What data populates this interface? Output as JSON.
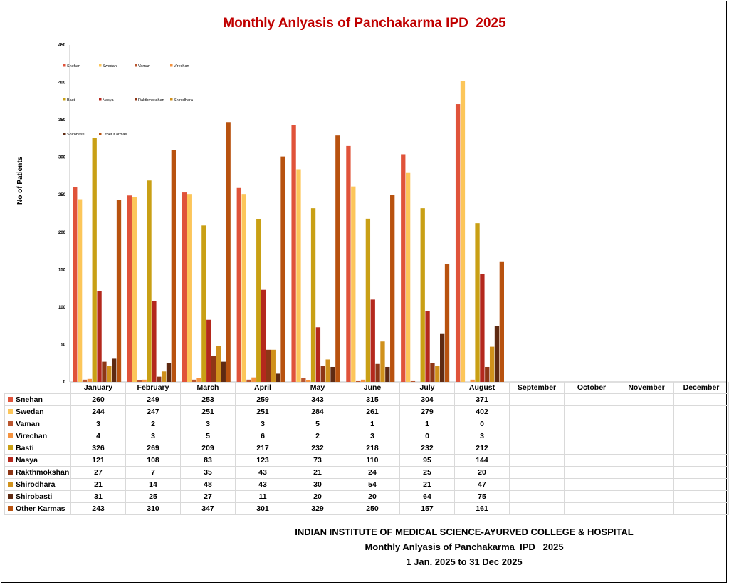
{
  "chart_data": {
    "type": "bar",
    "title": "Monthly Anlyasis of Panchakarma IPD  2025",
    "ylabel": "No of Patients",
    "xlabel": "",
    "ylim": [
      0,
      450
    ],
    "yticks": [
      0,
      50,
      100,
      150,
      200,
      250,
      300,
      350,
      400,
      450
    ],
    "grid": false,
    "legend_position": "top-left",
    "categories": [
      "January",
      "February",
      "March",
      "April",
      "May",
      "June",
      "July",
      "August",
      "September",
      "October",
      "November",
      "December"
    ],
    "series": [
      {
        "name": "Snehan",
        "color": "#e0533a",
        "values": [
          260,
          249,
          253,
          259,
          343,
          315,
          304,
          371,
          null,
          null,
          null,
          null
        ]
      },
      {
        "name": "Swedan",
        "color": "#fcc65a",
        "values": [
          244,
          247,
          251,
          251,
          284,
          261,
          279,
          402,
          null,
          null,
          null,
          null
        ]
      },
      {
        "name": "Vaman",
        "color": "#b9552e",
        "values": [
          3,
          2,
          3,
          3,
          5,
          1,
          1,
          0,
          null,
          null,
          null,
          null
        ]
      },
      {
        "name": "Virechan",
        "color": "#f5923e",
        "values": [
          4,
          3,
          5,
          6,
          2,
          3,
          0,
          3,
          null,
          null,
          null,
          null
        ]
      },
      {
        "name": "Basti",
        "color": "#c9a015",
        "values": [
          326,
          269,
          209,
          217,
          232,
          218,
          232,
          212,
          null,
          null,
          null,
          null
        ]
      },
      {
        "name": "Nasya",
        "color": "#b4281d",
        "values": [
          121,
          108,
          83,
          123,
          73,
          110,
          95,
          144,
          null,
          null,
          null,
          null
        ]
      },
      {
        "name": "Rakthmokshan",
        "color": "#8e3616",
        "values": [
          27,
          7,
          35,
          43,
          21,
          24,
          25,
          20,
          null,
          null,
          null,
          null
        ]
      },
      {
        "name": "Shirodhara",
        "color": "#d0911b",
        "values": [
          21,
          14,
          48,
          43,
          30,
          54,
          21,
          47,
          null,
          null,
          null,
          null
        ]
      },
      {
        "name": "Shirobasti",
        "color": "#5e2a12",
        "values": [
          31,
          25,
          27,
          11,
          20,
          20,
          64,
          75,
          null,
          null,
          null,
          null
        ]
      },
      {
        "name": "Other Karmas",
        "color": "#b8520f",
        "values": [
          243,
          310,
          347,
          301,
          329,
          250,
          157,
          161,
          null,
          null,
          null,
          null
        ]
      }
    ]
  },
  "footer": {
    "line1": "INDIAN INSTITUTE OF MEDICAL SCIENCE-AYURVED COLLEGE & HOSPITAL",
    "line2": "Monthly Anlyasis of Panchakarma  IPD   2025",
    "line3": "1 Jan. 2025 to 31 Dec 2025"
  }
}
